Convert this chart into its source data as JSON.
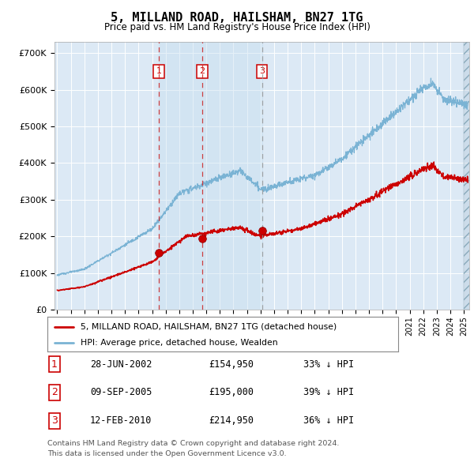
{
  "title": "5, MILLAND ROAD, HAILSHAM, BN27 1TG",
  "subtitle": "Price paid vs. HM Land Registry's House Price Index (HPI)",
  "background_color": "#dce9f5",
  "grid_color": "#ffffff",
  "hpi_color": "#7ab3d4",
  "price_color": "#cc0000",
  "trans_dates": [
    2002.49,
    2005.69,
    2010.12
  ],
  "trans_prices": [
    154950,
    195000,
    214950
  ],
  "ylim": [
    0,
    730000
  ],
  "xlim_start": 1994.8,
  "xlim_end": 2025.4,
  "legend_label1": "5, MILLAND ROAD, HAILSHAM, BN27 1TG (detached house)",
  "legend_label2": "HPI: Average price, detached house, Wealden",
  "transaction_dates_str": [
    "28-JUN-2002",
    "09-SEP-2005",
    "12-FEB-2010"
  ],
  "transaction_prices_str": [
    "£154,950",
    "£195,000",
    "£214,950"
  ],
  "transaction_pct_str": [
    "33% ↓ HPI",
    "39% ↓ HPI",
    "36% ↓ HPI"
  ],
  "footnote1": "Contains HM Land Registry data © Crown copyright and database right 2024.",
  "footnote2": "This data is licensed under the Open Government Licence v3.0."
}
